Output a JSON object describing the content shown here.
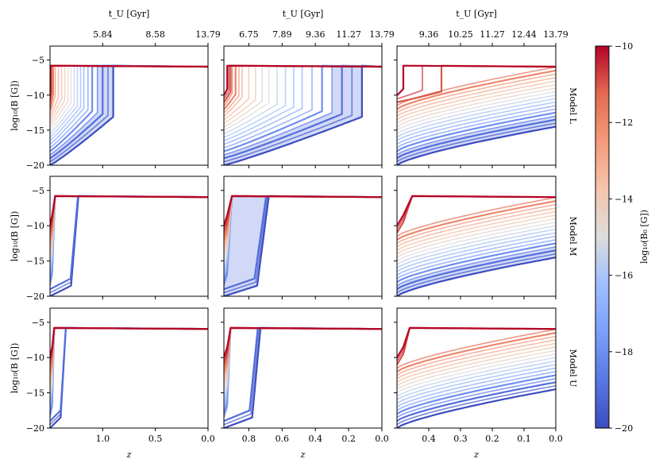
{
  "chart_data": {
    "type": "line",
    "title": "",
    "colormap": "coolwarm",
    "colorbar": {
      "label": "log₁₀(B₀ [G])",
      "range": [
        -20,
        -10
      ],
      "ticks": [
        "−10",
        "−12",
        "−14",
        "−16",
        "−18",
        "−20"
      ],
      "tick_values": [
        -10,
        -12,
        -14,
        -16,
        -18,
        -20
      ]
    },
    "top_axis_label": "t_U [Gyr]",
    "x_label": "z",
    "y_label": "log₁₀(B [G])",
    "ylim": [
      -20,
      -3
    ],
    "y_ticks": [
      "−5",
      "−10",
      "−15",
      "−20"
    ],
    "y_tick_values": [
      -5,
      -10,
      -15,
      -20
    ],
    "rows": [
      "Model L",
      "Model M",
      "Model U"
    ],
    "columns": [
      {
        "xlim": [
          1.5,
          0.0
        ],
        "x_ticks": [
          "1.0",
          "0.5",
          "0.0"
        ],
        "x_tick_values": [
          1.0,
          0.5,
          0.0
        ],
        "top_ticks": [
          "5.84",
          "8.58",
          "13.79"
        ],
        "top_tick_z": [
          1.0,
          0.5,
          0.0
        ]
      },
      {
        "xlim": [
          0.95,
          0.0
        ],
        "x_ticks": [
          "0.8",
          "0.6",
          "0.4",
          "0.2",
          "0.0"
        ],
        "x_tick_values": [
          0.8,
          0.6,
          0.4,
          0.2,
          0.0
        ],
        "top_ticks": [
          "6.75",
          "7.89",
          "9.36",
          "11.27",
          "13.79"
        ],
        "top_tick_z": [
          0.8,
          0.6,
          0.4,
          0.2,
          0.0
        ]
      },
      {
        "xlim": [
          0.5,
          0.0
        ],
        "x_ticks": [
          "0.4",
          "0.3",
          "0.2",
          "0.1",
          "0.0"
        ],
        "x_tick_values": [
          0.4,
          0.3,
          0.2,
          0.1,
          0.0
        ],
        "top_ticks": [
          "9.36",
          "10.25",
          "11.27",
          "12.44",
          "13.79"
        ],
        "top_tick_z": [
          0.4,
          0.3,
          0.2,
          0.1,
          0.0
        ]
      }
    ],
    "saturation_level": -5.8,
    "series_B0": [
      -20,
      -19.5,
      -19,
      -18.5,
      -18,
      -17.5,
      -17,
      -16.5,
      -16,
      -15.5,
      -15,
      -14.5,
      -14,
      -13.5,
      -13,
      -12.5,
      -12,
      -11.5,
      -11,
      -10.5,
      -10
    ],
    "saturation_z": [
      [
        0.9,
        0.95,
        1.0,
        1.05,
        1.1,
        1.14,
        1.18,
        1.21,
        1.24,
        1.27,
        1.3,
        1.33,
        1.36,
        1.39,
        1.42,
        1.45,
        1.47,
        1.48,
        1.49,
        1.49,
        1.5
      ],
      [
        0.12,
        0.18,
        0.24,
        0.3,
        0.36,
        0.42,
        0.48,
        0.53,
        0.58,
        0.63,
        0.68,
        0.72,
        0.76,
        0.8,
        0.84,
        0.86,
        0.88,
        0.9,
        0.91,
        0.92,
        0.93
      ],
      [
        null,
        null,
        null,
        null,
        null,
        null,
        null,
        null,
        null,
        null,
        null,
        null,
        null,
        null,
        null,
        null,
        null,
        null,
        0.36,
        0.42,
        0.48
      ]
    ],
    "highlighted_B0": [
      -20,
      -19,
      -18,
      -12,
      -11,
      -10
    ]
  },
  "row_labels": [
    "Model L",
    "Model M",
    "Model U"
  ],
  "axis_texts": {
    "top_label": "t_U [Gyr]",
    "x_label": "z",
    "y_label": "log₁₀(B [G])",
    "colorbar_label": "log₁₀(B₀ [G])"
  }
}
